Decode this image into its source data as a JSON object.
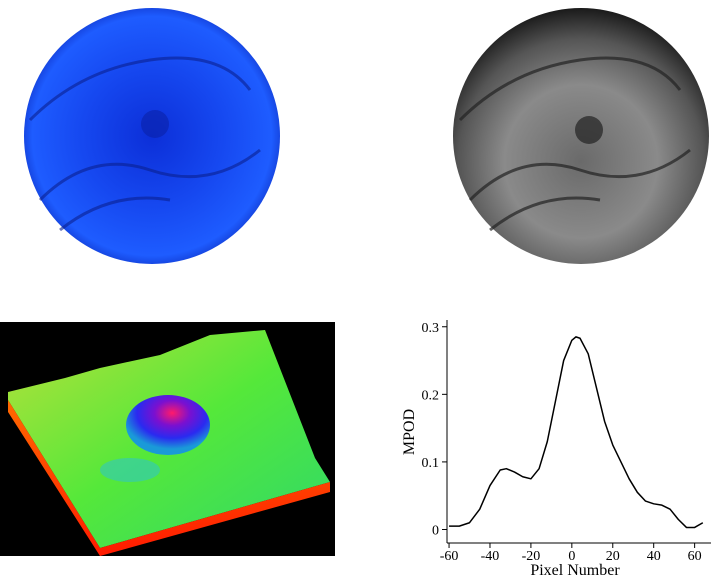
{
  "chart_data": {
    "type": "line",
    "x": [
      -60,
      -55,
      -50,
      -45,
      -40,
      -35,
      -32,
      -28,
      -24,
      -20,
      -16,
      -12,
      -8,
      -4,
      0,
      2,
      4,
      8,
      12,
      16,
      20,
      24,
      28,
      32,
      36,
      40,
      44,
      48,
      52,
      56,
      60,
      64
    ],
    "values": [
      0.005,
      0.005,
      0.01,
      0.03,
      0.065,
      0.088,
      0.09,
      0.085,
      0.078,
      0.075,
      0.09,
      0.13,
      0.19,
      0.25,
      0.28,
      0.285,
      0.283,
      0.26,
      0.21,
      0.16,
      0.125,
      0.1,
      0.075,
      0.055,
      0.042,
      0.038,
      0.036,
      0.03,
      0.015,
      0.003,
      0.003,
      0.01
    ],
    "color": "#000000",
    "xlabel": "Pixel Number",
    "ylabel": "MPOD",
    "xlim": [
      -61,
      68
    ],
    "ylim": [
      -0.02,
      0.31
    ],
    "xticks": [
      -60,
      -40,
      -20,
      0,
      20,
      40,
      60
    ],
    "yticks": [
      0,
      0.1,
      0.2,
      0.3
    ]
  }
}
